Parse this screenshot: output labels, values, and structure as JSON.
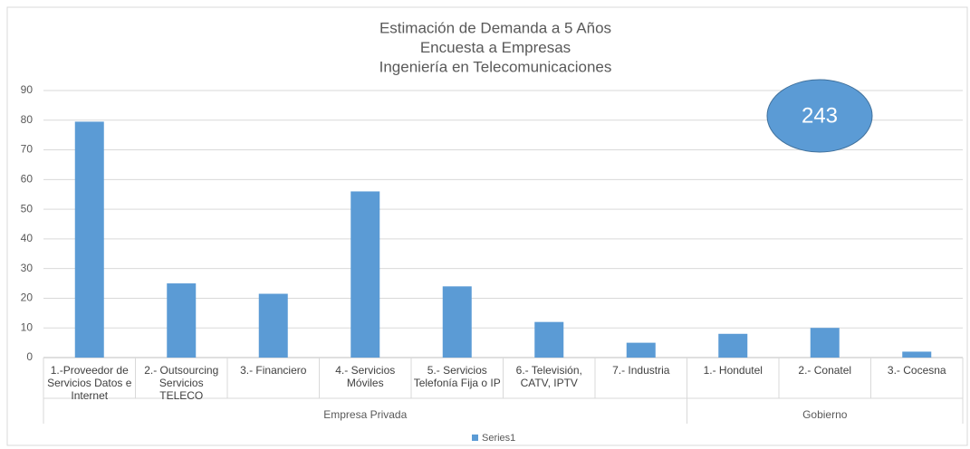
{
  "chart_data": {
    "type": "bar",
    "title": [
      "Estimación de Demanda a 5 Años",
      "Encuesta a Empresas",
      "Ingeniería en Telecomunicaciones"
    ],
    "groups": [
      {
        "name": "Empresa Privada",
        "categories": [
          "1.-Proveedor de Servicios Datos e Internet",
          "2.- Outsourcing Servicios TELECO",
          "3.- Financiero",
          "4.- Servicios Móviles",
          "5.- Servicios Telefonía Fija o IP",
          "6.- Televisión, CATV, IPTV",
          "7.- Industria"
        ]
      },
      {
        "name": "Gobierno",
        "categories": [
          "1.- Hondutel",
          "2.- Conatel",
          "3.- Cocesna"
        ]
      }
    ],
    "series": [
      {
        "name": "Series1",
        "color": "#5b9bd5",
        "values": [
          79.5,
          25,
          21.5,
          56,
          24,
          12,
          5,
          8,
          10,
          2
        ]
      }
    ],
    "annotation": "243",
    "ylim": [
      0,
      90
    ],
    "yticks": [
      0,
      10,
      20,
      30,
      40,
      50,
      60,
      70,
      80,
      90
    ],
    "grid": true,
    "legend": "bottom"
  }
}
